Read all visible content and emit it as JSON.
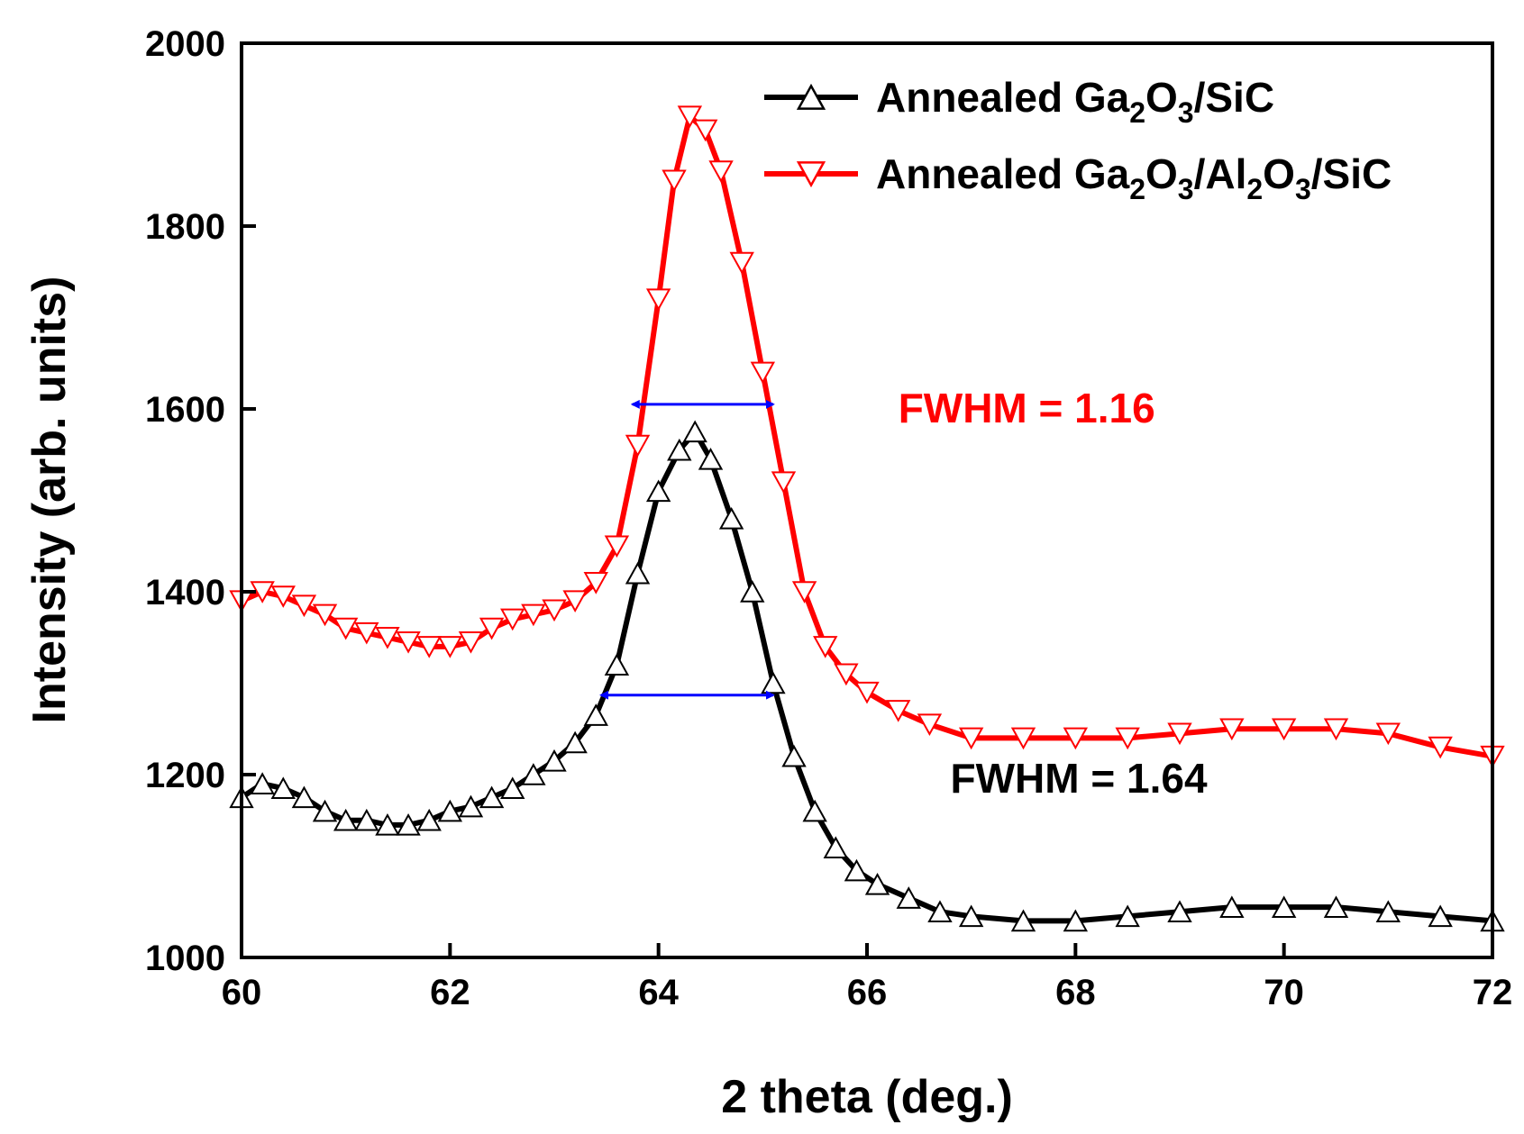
{
  "chart_data": {
    "type": "line",
    "title": "",
    "xlabel": "2 theta (deg.)",
    "ylabel": "Intensity (arb. units)",
    "xlim": [
      60,
      72
    ],
    "ylim": [
      1000,
      2000
    ],
    "xticks": [
      60,
      62,
      64,
      66,
      68,
      70,
      72
    ],
    "yticks": [
      1000,
      1200,
      1400,
      1600,
      1800,
      2000
    ],
    "legend_position": "top-right",
    "series": [
      {
        "name": "Annealed Ga2O3/SiC",
        "legend": {
          "pre": "Annealed Ga",
          "sub1": "2",
          "mid1": "O",
          "sub2": "3",
          "post": "/SiC"
        },
        "color": "#000000",
        "marker": "triangle-up",
        "points": [
          [
            60.0,
            1175
          ],
          [
            60.2,
            1190
          ],
          [
            60.4,
            1185
          ],
          [
            60.6,
            1175
          ],
          [
            60.8,
            1160
          ],
          [
            61.0,
            1150
          ],
          [
            61.2,
            1150
          ],
          [
            61.4,
            1145
          ],
          [
            61.6,
            1145
          ],
          [
            61.8,
            1150
          ],
          [
            62.0,
            1160
          ],
          [
            62.2,
            1165
          ],
          [
            62.4,
            1175
          ],
          [
            62.6,
            1185
          ],
          [
            62.8,
            1200
          ],
          [
            63.0,
            1215
          ],
          [
            63.2,
            1235
          ],
          [
            63.4,
            1265
          ],
          [
            63.6,
            1320
          ],
          [
            63.8,
            1420
          ],
          [
            64.0,
            1510
          ],
          [
            64.2,
            1555
          ],
          [
            64.35,
            1575
          ],
          [
            64.5,
            1545
          ],
          [
            64.7,
            1480
          ],
          [
            64.9,
            1400
          ],
          [
            65.1,
            1300
          ],
          [
            65.3,
            1220
          ],
          [
            65.5,
            1160
          ],
          [
            65.7,
            1120
          ],
          [
            65.9,
            1095
          ],
          [
            66.1,
            1080
          ],
          [
            66.4,
            1065
          ],
          [
            66.7,
            1050
          ],
          [
            67.0,
            1045
          ],
          [
            67.5,
            1040
          ],
          [
            68.0,
            1040
          ],
          [
            68.5,
            1045
          ],
          [
            69.0,
            1050
          ],
          [
            69.5,
            1055
          ],
          [
            70.0,
            1055
          ],
          [
            70.5,
            1055
          ],
          [
            71.0,
            1050
          ],
          [
            71.5,
            1045
          ],
          [
            72.0,
            1040
          ]
        ]
      },
      {
        "name": "Annealed Ga2O3/Al2O3/SiC",
        "legend": {
          "pre": "Annealed Ga",
          "sub1": "2",
          "mid1": "O",
          "sub2": "3",
          "post": "/Al",
          "sub3": "2",
          "mid2": "O",
          "sub4": "3",
          "post2": "/SiC"
        },
        "color": "#ff0000",
        "marker": "triangle-down",
        "points": [
          [
            60.0,
            1390
          ],
          [
            60.2,
            1400
          ],
          [
            60.4,
            1395
          ],
          [
            60.6,
            1385
          ],
          [
            60.8,
            1375
          ],
          [
            61.0,
            1360
          ],
          [
            61.2,
            1355
          ],
          [
            61.4,
            1350
          ],
          [
            61.6,
            1345
          ],
          [
            61.8,
            1340
          ],
          [
            62.0,
            1340
          ],
          [
            62.2,
            1345
          ],
          [
            62.4,
            1360
          ],
          [
            62.6,
            1370
          ],
          [
            62.8,
            1375
          ],
          [
            63.0,
            1380
          ],
          [
            63.2,
            1390
          ],
          [
            63.4,
            1410
          ],
          [
            63.6,
            1450
          ],
          [
            63.8,
            1560
          ],
          [
            64.0,
            1720
          ],
          [
            64.15,
            1850
          ],
          [
            64.3,
            1920
          ],
          [
            64.45,
            1905
          ],
          [
            64.6,
            1860
          ],
          [
            64.8,
            1760
          ],
          [
            65.0,
            1640
          ],
          [
            65.2,
            1520
          ],
          [
            65.4,
            1400
          ],
          [
            65.6,
            1340
          ],
          [
            65.8,
            1310
          ],
          [
            66.0,
            1290
          ],
          [
            66.3,
            1270
          ],
          [
            66.6,
            1255
          ],
          [
            67.0,
            1240
          ],
          [
            67.5,
            1240
          ],
          [
            68.0,
            1240
          ],
          [
            68.5,
            1240
          ],
          [
            69.0,
            1245
          ],
          [
            69.5,
            1250
          ],
          [
            70.0,
            1250
          ],
          [
            70.5,
            1250
          ],
          [
            71.0,
            1245
          ],
          [
            71.5,
            1230
          ],
          [
            72.0,
            1220
          ]
        ]
      }
    ],
    "annotations": [
      {
        "text": "FWHM = 1.16",
        "color": "#ff0000",
        "x": 66.3,
        "y": 1600,
        "arrow_x": [
          63.75,
          65.1
        ],
        "arrow_y": 1605
      },
      {
        "text": "FWHM = 1.64",
        "color": "#000000",
        "x": 66.8,
        "y": 1195,
        "arrow_x": [
          63.45,
          65.1
        ],
        "arrow_y": 1287
      }
    ],
    "arrow_color": "#0000ff"
  }
}
